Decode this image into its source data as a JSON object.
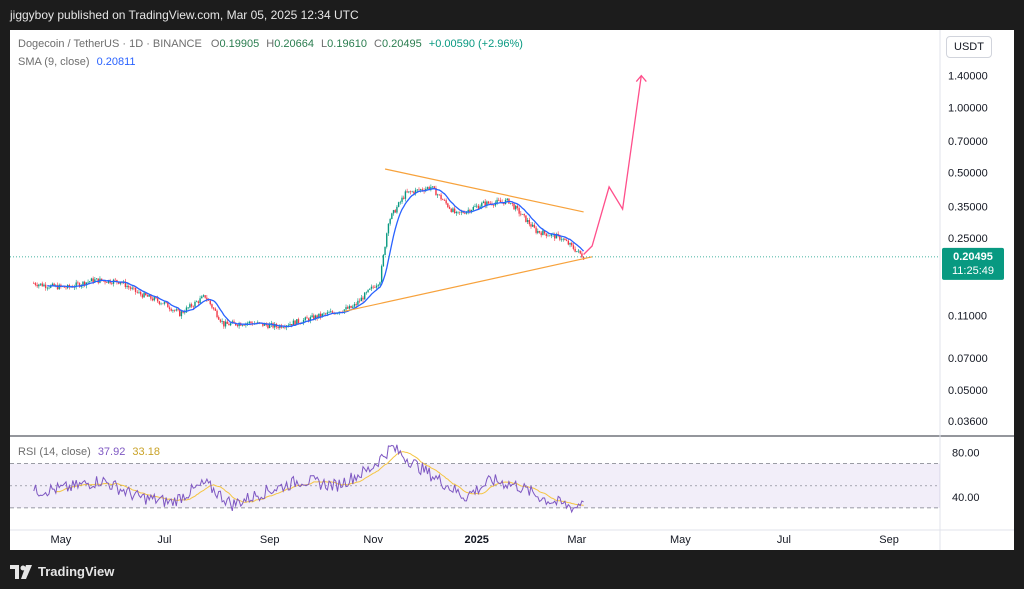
{
  "header": {
    "published": "jiggyboy published on TradingView.com, Mar 05, 2025 12:34 UTC"
  },
  "footer": {
    "brand": "TradingView"
  },
  "legend": {
    "symbol": "Dogecoin / TetherUS · 1D · BINANCE",
    "o_label": "O",
    "o_value": "0.19905",
    "h_label": "H",
    "h_value": "0.20664",
    "l_label": "L",
    "l_value": "0.19610",
    "c_label": "C",
    "c_value": "0.20495",
    "change": "+0.00590 (+2.96%)",
    "sma_label": "SMA (9, close)",
    "sma_value": "0.20811",
    "rsi_label": "RSI (14, close)",
    "rsi_value": "37.92",
    "rsi_ma_value": "33.18"
  },
  "currency_button": "USDT",
  "price_tag": {
    "value": "0.20495",
    "countdown": "11:25:49"
  },
  "chart_data": {
    "type": "candlestick",
    "y_scale": "log",
    "price_ticks": [
      "1.40000",
      "1.00000",
      "0.70000",
      "0.50000",
      "0.35000",
      "0.25000",
      "0.11000",
      "0.07000",
      "0.05000",
      "0.03600"
    ],
    "rsi_ticks": [
      "80.00",
      "40.00"
    ],
    "x_ticks": [
      "May",
      "Jul",
      "Sep",
      "Nov",
      "2025",
      "Mar",
      "May",
      "Jul",
      "Sep"
    ],
    "price_path": [
      [
        "2024-04-15",
        0.155
      ],
      [
        "2024-04-25",
        0.15
      ],
      [
        "2024-05-05",
        0.148
      ],
      [
        "2024-05-20",
        0.16
      ],
      [
        "2024-06-05",
        0.158
      ],
      [
        "2024-06-15",
        0.14
      ],
      [
        "2024-07-01",
        0.125
      ],
      [
        "2024-07-10",
        0.112
      ],
      [
        "2024-07-25",
        0.135
      ],
      [
        "2024-08-05",
        0.1
      ],
      [
        "2024-08-20",
        0.102
      ],
      [
        "2024-09-05",
        0.098
      ],
      [
        "2024-09-20",
        0.104
      ],
      [
        "2024-10-05",
        0.112
      ],
      [
        "2024-10-20",
        0.12
      ],
      [
        "2024-11-05",
        0.16
      ],
      [
        "2024-11-10",
        0.3
      ],
      [
        "2024-11-20",
        0.4
      ],
      [
        "2024-12-05",
        0.43
      ],
      [
        "2024-12-20",
        0.32
      ],
      [
        "2025-01-05",
        0.36
      ],
      [
        "2025-01-20",
        0.37
      ],
      [
        "2025-02-05",
        0.27
      ],
      [
        "2025-02-20",
        0.25
      ],
      [
        "2025-03-05",
        0.205
      ]
    ],
    "sma_value": 0.20811,
    "current_price": 0.20495,
    "triangle_upper": [
      [
        "2024-11-08",
        0.52
      ],
      [
        "2025-03-05",
        0.33
      ]
    ],
    "triangle_lower": [
      [
        "2024-10-15",
        0.115
      ],
      [
        "2025-03-10",
        0.205
      ]
    ],
    "projection": [
      [
        "2025-03-05",
        0.21
      ],
      [
        "2025-03-10",
        0.23
      ],
      [
        "2025-03-20",
        0.43
      ],
      [
        "2025-03-28",
        0.34
      ],
      [
        "2025-04-08",
        1.4
      ]
    ],
    "rsi_path": [
      [
        "2024-04-15",
        45
      ],
      [
        "2024-05-05",
        48
      ],
      [
        "2024-05-25",
        55
      ],
      [
        "2024-06-15",
        40
      ],
      [
        "2024-07-05",
        35
      ],
      [
        "2024-07-25",
        52
      ],
      [
        "2024-08-10",
        33
      ],
      [
        "2024-08-30",
        45
      ],
      [
        "2024-09-20",
        55
      ],
      [
        "2024-10-10",
        50
      ],
      [
        "2024-10-30",
        65
      ],
      [
        "2024-11-12",
        85
      ],
      [
        "2024-11-25",
        70
      ],
      [
        "2024-12-10",
        55
      ],
      [
        "2024-12-25",
        40
      ],
      [
        "2025-01-10",
        55
      ],
      [
        "2025-01-25",
        50
      ],
      [
        "2025-02-10",
        38
      ],
      [
        "2025-02-28",
        30
      ],
      [
        "2025-03-05",
        38
      ]
    ],
    "rsi_band": [
      30,
      70
    ]
  }
}
